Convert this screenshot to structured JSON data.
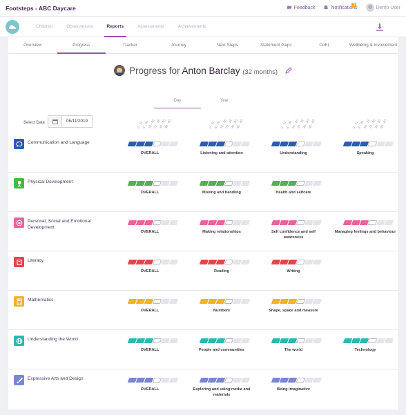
{
  "app": {
    "title": "Footsteps - ABC Daycare"
  },
  "topbar": {
    "feedback": "Feedback",
    "notifications": "Notifications",
    "notification_count": "5",
    "user": "Demo User"
  },
  "nav": {
    "tabs": [
      "Children",
      "Observations",
      "Reports",
      "Assessments",
      "Achievements"
    ],
    "active": "Reports"
  },
  "subtabs": {
    "items": [
      "Overview",
      "Progress",
      "Tracker",
      "Journey",
      "Next Steps",
      "Statement Gaps",
      "CoEL",
      "Wellbeing & Involvement"
    ],
    "active": "Progress"
  },
  "header": {
    "prefix": "Progress for",
    "child_name": "Anton Barclay",
    "age": "(32 months)"
  },
  "period": {
    "tabs": [
      "Day",
      "Year"
    ],
    "active": "Day"
  },
  "date": {
    "label": "Select Date",
    "value": "06/11/2019"
  },
  "age_bands": [
    "0 - 11",
    "8 - 20",
    "16 - 26",
    "22 - 36",
    "30 - 50",
    "40 - 60"
  ],
  "areas": [
    {
      "name": "Communication and Language",
      "color": "#2a5db0",
      "icon": "speech-bubble-icon",
      "aspects": [
        {
          "label": "OVERALL",
          "filled": 3,
          "partial": 0,
          "highlight": 1
        },
        {
          "label": "Listening and attention",
          "filled": 3,
          "partial": 0,
          "highlight": 1
        },
        {
          "label": "Understanding",
          "filled": 3,
          "partial": 0,
          "highlight": 1
        },
        {
          "label": "Speaking",
          "filled": 3,
          "partial": 0,
          "highlight": 1
        }
      ]
    },
    {
      "name": "Physical Development",
      "color": "#4ab848",
      "icon": "trophy-icon",
      "aspects": [
        {
          "label": "OVERALL",
          "filled": 3,
          "partial": 0,
          "highlight": 1
        },
        {
          "label": "Moving and handling",
          "filled": 3,
          "partial": 0,
          "highlight": 1
        },
        {
          "label": "Health and selfcare",
          "filled": 3,
          "partial": 0,
          "highlight": 1
        }
      ]
    },
    {
      "name": "Personal, Social and Emotional Development",
      "color": "#e8649a",
      "icon": "target-icon",
      "aspects": [
        {
          "label": "OVERALL",
          "filled": 3,
          "partial": 0,
          "highlight": 1
        },
        {
          "label": "Making relationships",
          "filled": 3,
          "partial": 0,
          "highlight": 1
        },
        {
          "label": "Self confidence and self awareness",
          "filled": 3,
          "partial": 0,
          "highlight": 1
        },
        {
          "label": "Managing feelings and behaviour",
          "filled": 3,
          "partial": 0,
          "highlight": 1
        }
      ]
    },
    {
      "name": "Literacy",
      "color": "#e04848",
      "icon": "book-icon",
      "aspects": [
        {
          "label": "OVERALL",
          "filled": 3,
          "partial": 0,
          "highlight": 1
        },
        {
          "label": "Reading",
          "filled": 3,
          "partial": 0,
          "highlight": 1
        },
        {
          "label": "Writing",
          "filled": 3,
          "partial": 0,
          "highlight": 1
        }
      ]
    },
    {
      "name": "Mathematics",
      "color": "#f2b22a",
      "icon": "calculator-icon",
      "aspects": [
        {
          "label": "OVERALL",
          "filled": 3,
          "partial": 0,
          "highlight": 1
        },
        {
          "label": "Numbers",
          "filled": 3,
          "partial": 0,
          "highlight": 1
        },
        {
          "label": "Shape, space and measure",
          "filled": 3,
          "partial": 0,
          "highlight": 1
        }
      ]
    },
    {
      "name": "Understanding the World",
      "color": "#2ab8b0",
      "icon": "globe-icon",
      "aspects": [
        {
          "label": "OVERALL",
          "filled": 3,
          "partial": 0,
          "highlight": 1
        },
        {
          "label": "People and communities",
          "filled": 3,
          "partial": 0,
          "highlight": 1
        },
        {
          "label": "The world",
          "filled": 3,
          "partial": 0,
          "highlight": 1
        },
        {
          "label": "Technology",
          "filled": 3,
          "partial": 0,
          "highlight": 1
        }
      ]
    },
    {
      "name": "Expressive Arts and Design",
      "color": "#7a86d4",
      "icon": "paintbrush-icon",
      "aspects": [
        {
          "label": "OVERALL",
          "filled": 3,
          "partial": 0,
          "highlight": 1
        },
        {
          "label": "Exploring and using media and materials",
          "filled": 3,
          "partial": 0,
          "highlight": 1
        },
        {
          "label": "Being imaginative",
          "filled": 3,
          "partial": 0,
          "highlight": 1
        }
      ]
    }
  ]
}
